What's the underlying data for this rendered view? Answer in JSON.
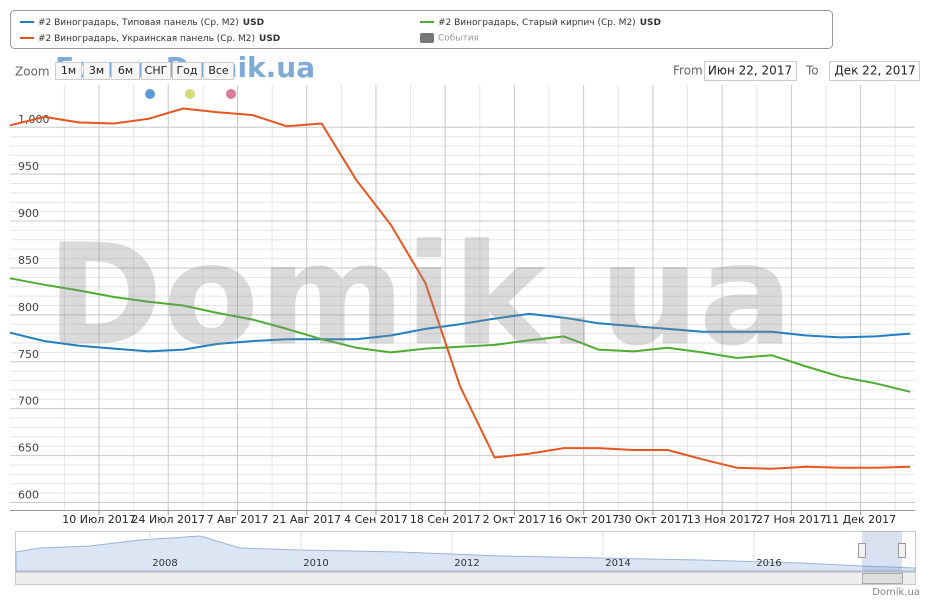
{
  "chart_data": {
    "type": "line",
    "series": [
      {
        "name": "#2 Виноградарь, Типовая панель (Ср. М2)",
        "unit": "USD",
        "color": "#1f7fc0",
        "values": [
          781,
          772,
          767,
          764,
          761,
          763,
          769,
          772,
          774,
          774,
          774,
          778,
          785,
          790,
          796,
          801,
          797,
          791,
          788,
          785,
          782,
          782,
          782,
          778,
          776,
          777,
          780
        ]
      },
      {
        "name": "#2 Виноградарь, Старый кирпич (Ср. М2)",
        "unit": "USD",
        "color": "#4fad32",
        "values": [
          839,
          832,
          826,
          819,
          814,
          810,
          802,
          795,
          785,
          774,
          765,
          760,
          764,
          766,
          768,
          773,
          777,
          763,
          761,
          765,
          760,
          754,
          757,
          745,
          734,
          727,
          718
        ]
      },
      {
        "name": "#2 Виноградарь, Украинская панель (Ср. М2)",
        "unit": "USD",
        "color": "#e8561f",
        "values": [
          1002,
          1011,
          1005,
          1004,
          1009,
          1020,
          1016,
          1013,
          1001,
          1004,
          944,
          896,
          834,
          724,
          648,
          652,
          658,
          658,
          656,
          656,
          646,
          637,
          636,
          638,
          637,
          637,
          638
        ]
      }
    ],
    "x": [
      "2017-06-22",
      "2017-06-29",
      "2017-07-06",
      "2017-07-13",
      "2017-07-20",
      "2017-07-27",
      "2017-08-03",
      "2017-08-10",
      "2017-08-17",
      "2017-08-24",
      "2017-08-31",
      "2017-09-07",
      "2017-09-14",
      "2017-09-21",
      "2017-09-28",
      "2017-10-05",
      "2017-10-12",
      "2017-10-19",
      "2017-10-26",
      "2017-11-02",
      "2017-11-09",
      "2017-11-16",
      "2017-11-23",
      "2017-11-30",
      "2017-12-07",
      "2017-12-14",
      "2017-12-21"
    ],
    "xlim": [
      "2017-06-22",
      "2017-12-22"
    ],
    "xticks": [
      {
        "value": "2017-07-10",
        "label": "10 Июл 2017"
      },
      {
        "value": "2017-07-24",
        "label": "24 Июл 2017"
      },
      {
        "value": "2017-08-07",
        "label": "7 Авг 2017"
      },
      {
        "value": "2017-08-21",
        "label": "21 Авг 2017"
      },
      {
        "value": "2017-09-04",
        "label": "4 Сен 2017"
      },
      {
        "value": "2017-09-18",
        "label": "18 Сен 2017"
      },
      {
        "value": "2017-10-02",
        "label": "2 Окт 2017"
      },
      {
        "value": "2017-10-16",
        "label": "16 Окт 2017"
      },
      {
        "value": "2017-10-30",
        "label": "30 Окт 2017"
      },
      {
        "value": "2017-11-13",
        "label": "13 Ноя 2017"
      },
      {
        "value": "2017-11-27",
        "label": "27 Ноя 2017"
      },
      {
        "value": "2017-12-11",
        "label": "11 Дек 2017"
      }
    ],
    "ylim": [
      592,
      1045
    ],
    "yticks": [
      600,
      650,
      700,
      750,
      800,
      850,
      900,
      950,
      {
        "value": 1000,
        "label": "1,000"
      }
    ],
    "grid": true,
    "events_label": "События"
  },
  "ui": {
    "zoom_label": "Zoom",
    "zoom_buttons": [
      "1м",
      "3м",
      "6м",
      "СНГ",
      "Год",
      "Все"
    ],
    "from_label": "From",
    "from_value": "Июн 22, 2017",
    "to_label": "To",
    "to_value": "Дек 22, 2017",
    "watermark": "Domik.ua",
    "forum_watermark": "Forum.Domik.ua",
    "navigator_labels": [
      "2008",
      "2010",
      "2012",
      "2014",
      "2016"
    ],
    "credit": "Domik.ua"
  }
}
